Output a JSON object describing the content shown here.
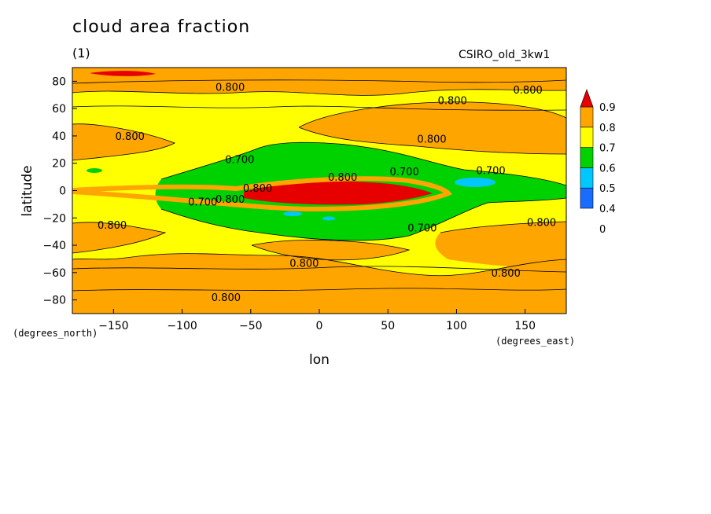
{
  "chart_data": {
    "type": "heatmap",
    "title": "cloud area fraction",
    "units": "(1)",
    "model": "CSIRO_old_3kw1",
    "xlabel": "lon",
    "ylabel": "latitude",
    "x_units": "(degrees_east)",
    "y_units": "(degrees_north)",
    "xlim": [
      -180,
      180
    ],
    "ylim": [
      -90,
      90
    ],
    "x_ticks": [
      -150,
      -100,
      -50,
      0,
      50,
      100,
      150
    ],
    "y_ticks": [
      -80,
      -60,
      -40,
      -20,
      0,
      20,
      40,
      60,
      80
    ],
    "x_tick_labels": [
      "−150",
      "−100",
      "−50",
      "0",
      "50",
      "100",
      "150"
    ],
    "y_tick_labels": [
      "−80",
      "−60",
      "−40",
      "−20",
      "0",
      "20",
      "40",
      "60",
      "80"
    ],
    "colorbar": {
      "levels": [
        "0",
        "0.4",
        "0.5",
        "0.6",
        "0.7",
        "0.8",
        "0.9"
      ],
      "colors": [
        "#1a6cff",
        "#00c8ff",
        "#00d200",
        "#ffff00",
        "#ffa500",
        "#e60000"
      ]
    },
    "contour_labels": [
      {
        "text": "0.800",
        "lon": -65,
        "lat": 76
      },
      {
        "text": "0.800",
        "lon": 97,
        "lat": 66
      },
      {
        "text": "0.800",
        "lon": 152,
        "lat": 74
      },
      {
        "text": "0.800",
        "lon": -138,
        "lat": 40
      },
      {
        "text": "0.800",
        "lon": 82,
        "lat": 38
      },
      {
        "text": "0.700",
        "lon": -58,
        "lat": 23
      },
      {
        "text": "0.700",
        "lon": 62,
        "lat": 14
      },
      {
        "text": "0.700",
        "lon": 125,
        "lat": 15
      },
      {
        "text": "0.800",
        "lon": 17,
        "lat": 10
      },
      {
        "text": "0.800",
        "lon": -45,
        "lat": 2
      },
      {
        "text": "0.700",
        "lon": -85,
        "lat": -8
      },
      {
        "text": "0.800",
        "lon": -65,
        "lat": -6
      },
      {
        "text": "0.800",
        "lon": -151,
        "lat": -25
      },
      {
        "text": "0.700",
        "lon": 75,
        "lat": -27
      },
      {
        "text": "0.800",
        "lon": 162,
        "lat": -23
      },
      {
        "text": "0.800",
        "lon": -11,
        "lat": -53
      },
      {
        "text": "0.800",
        "lon": 136,
        "lat": -60
      },
      {
        "text": "0.800",
        "lon": -68,
        "lat": -78
      }
    ]
  }
}
